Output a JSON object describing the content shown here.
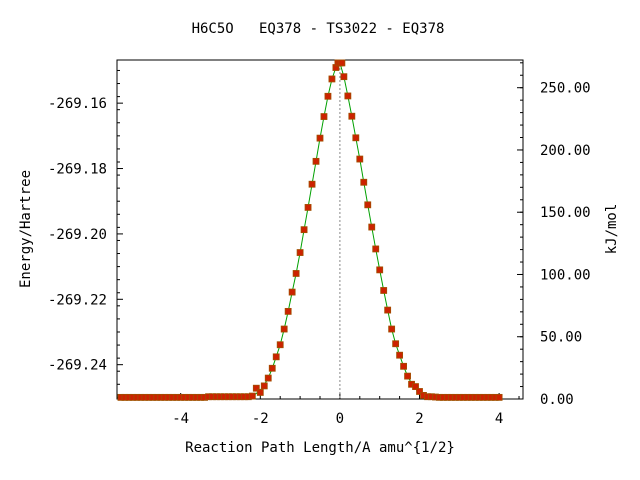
{
  "chart_data": {
    "type": "line",
    "title": "H6C5O   EQ378 - TS3022 - EQ378",
    "xlabel": "Reaction Path Length/A amu^{1/2}",
    "ylabel": "Energy/Hartree",
    "y2label": "kJ/mol",
    "xlim": [
      -5.6,
      4.6
    ],
    "ylim": [
      -269.2505,
      -269.1468
    ],
    "y2lim": [
      0.0,
      272.25
    ],
    "x_ticks": [
      -4,
      -2,
      0,
      2,
      4
    ],
    "x_tick_labels": [
      "-4",
      "-2",
      "0",
      "2",
      "4"
    ],
    "y_ticks": [
      -269.16,
      -269.18,
      -269.2,
      -269.22,
      -269.24
    ],
    "y_tick_labels": [
      "-269.16",
      "-269.18",
      "-269.20",
      "-269.22",
      "-269.24"
    ],
    "y2_ticks": [
      250,
      200,
      150,
      100,
      50,
      0
    ],
    "y2_tick_labels": [
      "250.00",
      "200.00",
      "150.00",
      "100.00",
      "50.00",
      "0.00"
    ],
    "grid": false,
    "ts_marker_x": 0.0,
    "series": [
      {
        "type": "scatter",
        "color": "#cc2200",
        "edge_color": "#a05000",
        "x": [
          -5.5,
          -5.4,
          -5.3,
          -5.2,
          -5.1,
          -5.0,
          -4.9,
          -4.8,
          -4.7,
          -4.6,
          -4.5,
          -4.4,
          -4.3,
          -4.2,
          -4.1,
          -4.0,
          -3.9,
          -3.8,
          -3.7,
          -3.6,
          -3.5,
          -3.4,
          -3.3,
          -3.2,
          -3.1,
          -3.0,
          -2.9,
          -2.8,
          -2.7,
          -2.6,
          -2.5,
          -2.4,
          -2.3,
          -2.2,
          -2.1,
          -2.0,
          -1.9,
          -1.8,
          -1.7,
          -1.6,
          -1.5,
          -1.4,
          -1.3,
          -1.2,
          -1.1,
          -1.0,
          -0.9,
          -0.8,
          -0.7,
          -0.6,
          -0.5,
          -0.4,
          -0.3,
          -0.2,
          -0.1,
          -0.05,
          0.0,
          0.05,
          0.1,
          0.2,
          0.3,
          0.4,
          0.5,
          0.6,
          0.7,
          0.8,
          0.9,
          1.0,
          1.1,
          1.2,
          1.3,
          1.4,
          1.5,
          1.6,
          1.7,
          1.8,
          1.9,
          2.0,
          2.1,
          2.2,
          2.3,
          2.4,
          2.5,
          2.6,
          2.7,
          2.8,
          2.9,
          3.0,
          3.1,
          3.2,
          3.3,
          3.4,
          3.5,
          3.6,
          3.7,
          3.8,
          3.9,
          4.0
        ],
        "y": [
          -269.25,
          -269.25,
          -269.25,
          -269.25,
          -269.25,
          -269.25,
          -269.25,
          -269.25,
          -269.25,
          -269.25,
          -269.25,
          -269.25,
          -269.25,
          -269.25,
          -269.25,
          -269.25,
          -269.25,
          -269.25,
          -269.25,
          -269.25,
          -269.25,
          -269.25,
          -269.2498,
          -269.2498,
          -269.2498,
          -269.2498,
          -269.2498,
          -269.2498,
          -269.2498,
          -269.2498,
          -269.2498,
          -269.2498,
          -269.2498,
          -269.2496,
          -269.2472,
          -269.2485,
          -269.2465,
          -269.2441,
          -269.2411,
          -269.2376,
          -269.2339,
          -269.2291,
          -269.2237,
          -269.2178,
          -269.2121,
          -269.2057,
          -269.1987,
          -269.1919,
          -269.1848,
          -269.1778,
          -269.1707,
          -269.1641,
          -269.1579,
          -269.1526,
          -269.1491,
          -269.1477,
          -269.1477,
          -269.1477,
          -269.1519,
          -269.1578,
          -269.164,
          -269.1706,
          -269.1771,
          -269.1842,
          -269.1911,
          -269.1979,
          -269.2046,
          -269.211,
          -269.2173,
          -269.2233,
          -269.2291,
          -269.2336,
          -269.2371,
          -269.2405,
          -269.2435,
          -269.246,
          -269.2467,
          -269.2482,
          -269.2494,
          -269.2498,
          -269.2498,
          -269.2499,
          -269.25,
          -269.25,
          -269.25,
          -269.25,
          -269.25,
          -269.25,
          -269.25,
          -269.25,
          -269.25,
          -269.25,
          -269.25,
          -269.25,
          -269.25,
          -269.25,
          -269.25,
          -269.25
        ]
      },
      {
        "type": "line",
        "color": "#00a000",
        "x": [
          -5.5,
          -5.3,
          -5.1,
          -4.9,
          -4.7,
          -4.5,
          -4.3,
          -4.1,
          -3.9,
          -3.7,
          -3.5,
          -3.3,
          -3.1,
          -2.9,
          -2.7,
          -2.5,
          -2.3,
          -2.2,
          -2.1,
          -2.0,
          -1.9,
          -1.8,
          -1.7,
          -1.6,
          -1.5,
          -1.4,
          -1.3,
          -1.2,
          -1.1,
          -1.0,
          -0.9,
          -0.8,
          -0.7,
          -0.6,
          -0.5,
          -0.4,
          -0.3,
          -0.2,
          -0.1,
          0.0,
          0.1,
          0.2,
          0.3,
          0.4,
          0.5,
          0.6,
          0.7,
          0.8,
          0.9,
          1.0,
          1.1,
          1.2,
          1.3,
          1.4,
          1.5,
          1.6,
          1.7,
          1.8,
          1.9,
          2.0,
          2.1,
          2.2,
          2.3,
          2.5,
          2.7,
          2.9,
          3.1,
          3.3,
          3.5,
          3.7,
          3.9,
          4.0
        ],
        "y": [
          -269.25,
          -269.25,
          -269.25,
          -269.25,
          -269.25,
          -269.25,
          -269.25,
          -269.25,
          -269.25,
          -269.25,
          -269.25,
          -269.2499,
          -269.2498,
          -269.2498,
          -269.2498,
          -269.2498,
          -269.2498,
          -269.2496,
          -269.2488,
          -269.2478,
          -269.2462,
          -269.2441,
          -269.2411,
          -269.2376,
          -269.2339,
          -269.2291,
          -269.2237,
          -269.2178,
          -269.2121,
          -269.2057,
          -269.1987,
          -269.1919,
          -269.1848,
          -269.1778,
          -269.1707,
          -269.1641,
          -269.1579,
          -269.1526,
          -269.1491,
          -269.1477,
          -269.1519,
          -269.1578,
          -269.164,
          -269.1706,
          -269.1771,
          -269.1842,
          -269.1911,
          -269.1979,
          -269.2046,
          -269.211,
          -269.2173,
          -269.2233,
          -269.2291,
          -269.2336,
          -269.2371,
          -269.2405,
          -269.2435,
          -269.2457,
          -269.2474,
          -269.2486,
          -269.2494,
          -269.2498,
          -269.2499,
          -269.25,
          -269.25,
          -269.25,
          -269.25,
          -269.25,
          -269.25,
          -269.25,
          -269.25,
          -269.25
        ]
      }
    ]
  }
}
